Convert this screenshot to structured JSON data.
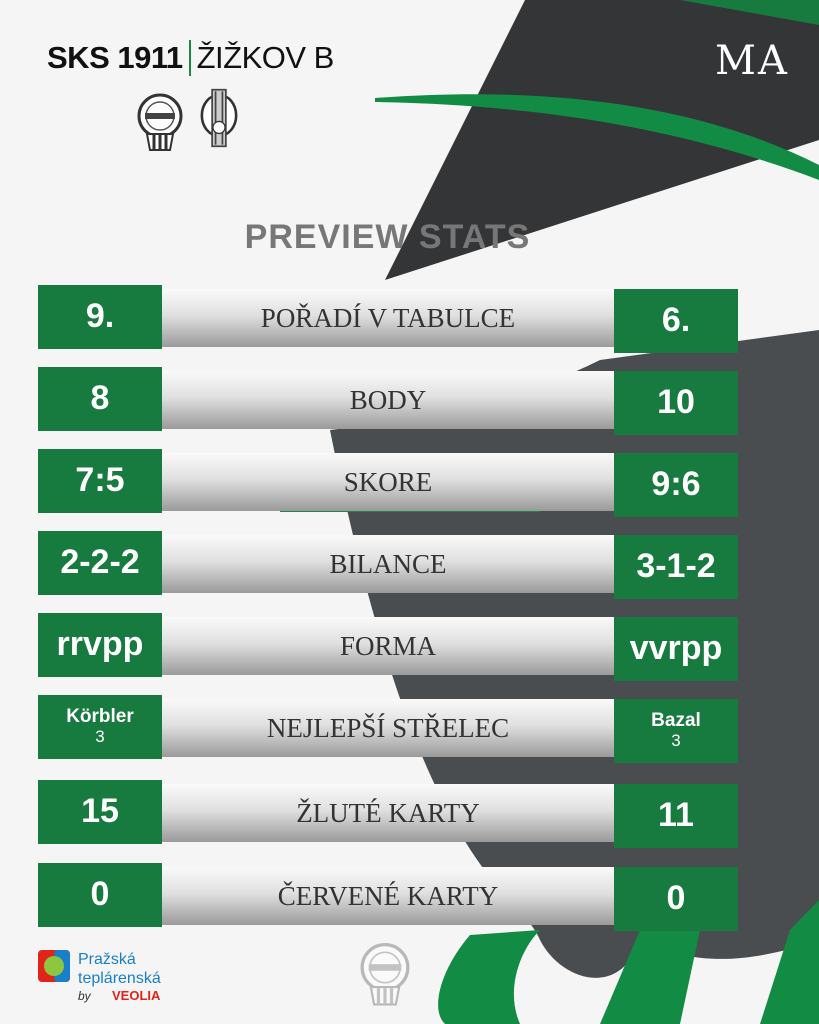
{
  "header": {
    "home_team": "SKS 1911",
    "away_team": "ŽIŽKOV B",
    "corner_mark": "MA"
  },
  "logos": {
    "home": "S.K. STŘEŠOVICE 1911",
    "away": "VIKTORIA ŽIŽKOV 1903"
  },
  "heading": "PREVIEW STATS",
  "stats": [
    {
      "label": "POŘADÍ V TABULCE",
      "home": "9.",
      "away": "6."
    },
    {
      "label": "BODY",
      "home": "8",
      "away": "10"
    },
    {
      "label": "SKORE",
      "home": "7:5",
      "away": "9:6"
    },
    {
      "label": "BILANCE",
      "home": "2-2-2",
      "away": "3-1-2"
    },
    {
      "label": "FORMA",
      "home": "rrvpp",
      "away": "vvrpp"
    },
    {
      "label": "NEJLEPŠÍ STŘELEC",
      "home_name": "Körbler",
      "home_value": "3",
      "away_name": "Bazal",
      "away_value": "3"
    },
    {
      "label": "ŽLUTÉ KARTY",
      "home": "15",
      "away": "11"
    },
    {
      "label": "ČERVENÉ KARTY",
      "home": "0",
      "away": "0"
    }
  ],
  "sponsor": {
    "line1": "Pražská",
    "line2": "teplárenská",
    "by": "by",
    "brand": "VEOLIA"
  },
  "colors": {
    "green": "#177a3f",
    "bright_green": "#128c45",
    "dark": "#333537",
    "bg": "#f5f5f5"
  }
}
